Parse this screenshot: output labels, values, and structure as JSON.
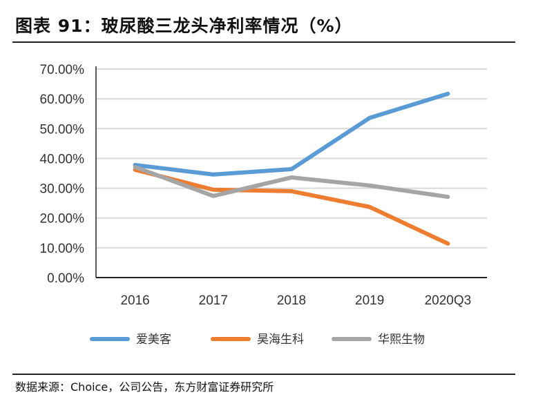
{
  "title": "图表 91：玻尿酸三龙头净利率情况（%）",
  "source": "数据来源：Choice，公司公告，东方财富证券研究所",
  "chart_data": {
    "type": "line",
    "title": "",
    "xlabel": "",
    "ylabel": "",
    "categories": [
      "2016",
      "2017",
      "2018",
      "2019",
      "2020Q3"
    ],
    "ylim": [
      0,
      70
    ],
    "yticks": [
      "0.00%",
      "10.00%",
      "20.00%",
      "30.00%",
      "40.00%",
      "50.00%",
      "60.00%",
      "70.00%"
    ],
    "grid": true,
    "legend_position": "bottom",
    "series": [
      {
        "name": "爱美客",
        "color": "#5B9BD5",
        "values": [
          37.8,
          34.6,
          36.4,
          53.6,
          61.7
        ]
      },
      {
        "name": "昊海生科",
        "color": "#ED7D31",
        "values": [
          36.2,
          29.5,
          29.0,
          23.7,
          11.4
        ]
      },
      {
        "name": "华熙生物",
        "color": "#A5A5A5",
        "values": [
          37.1,
          27.4,
          33.6,
          30.9,
          27.1
        ]
      }
    ]
  }
}
